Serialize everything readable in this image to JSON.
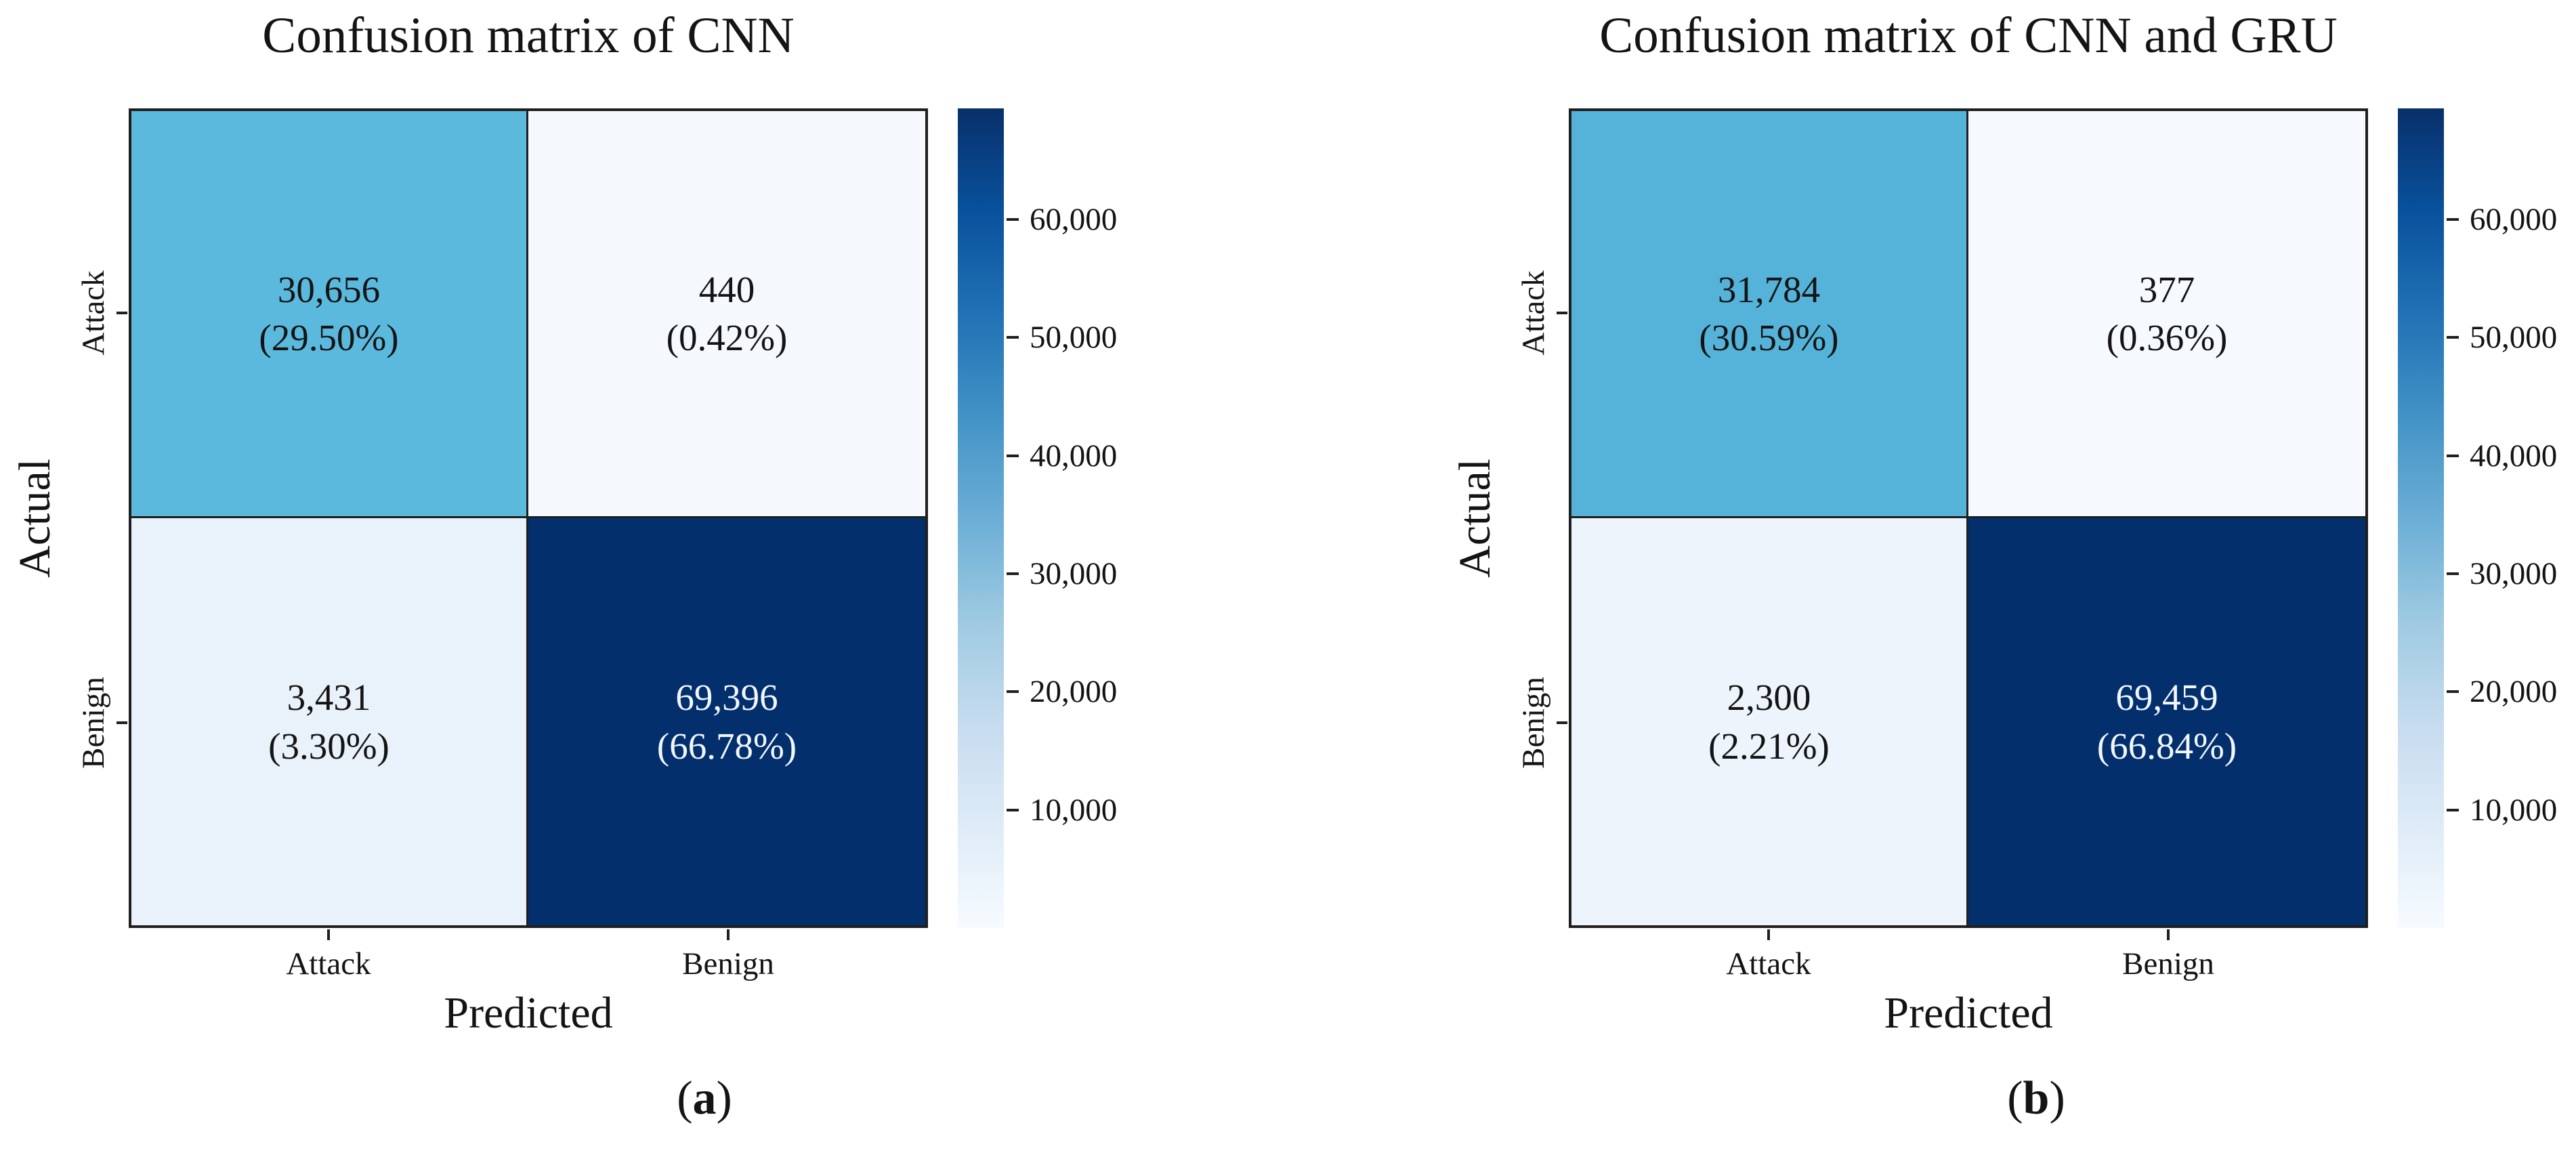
{
  "figure": {
    "panels": [
      {
        "title": "Confusion matrix of CNN",
        "y_axis_label": "Actual",
        "x_axis_label": "Predicted",
        "row_labels": [
          "Attack",
          "Benign"
        ],
        "col_labels": [
          "Attack",
          "Benign"
        ],
        "cells": [
          {
            "count": "30,656",
            "percent": "(29.50%)",
            "bg": "#5bb9de",
            "fg": "#141414"
          },
          {
            "count": "440",
            "percent": "(0.42%)",
            "bg": "#f5f9fe",
            "fg": "#141414"
          },
          {
            "count": "3,431",
            "percent": "(3.30%)",
            "bg": "#e9f1fa",
            "fg": "#141414"
          },
          {
            "count": "69,396",
            "percent": "(66.78%)",
            "bg": "#03306c",
            "fg": "#f2f6fd"
          }
        ],
        "colorbar_ticks": [
          "60,000",
          "50,000",
          "40,000",
          "30,000",
          "20,000",
          "10,000"
        ],
        "caption": {
          "open": "(",
          "letter": "a",
          "close": ")"
        }
      },
      {
        "title": "Confusion matrix of CNN and GRU",
        "y_axis_label": "Actual",
        "x_axis_label": "Predicted",
        "row_labels": [
          "Attack",
          "Benign"
        ],
        "col_labels": [
          "Attack",
          "Benign"
        ],
        "cells": [
          {
            "count": "31,784",
            "percent": "(30.59%)",
            "bg": "#55b3da",
            "fg": "#141414"
          },
          {
            "count": "377",
            "percent": "(0.36%)",
            "bg": "#f6fafe",
            "fg": "#141414"
          },
          {
            "count": "2,300",
            "percent": "(2.21%)",
            "bg": "#edf4fb",
            "fg": "#141414"
          },
          {
            "count": "69,459",
            "percent": "(66.84%)",
            "bg": "#03306c",
            "fg": "#f2f6fd"
          }
        ],
        "colorbar_ticks": [
          "60,000",
          "50,000",
          "40,000",
          "30,000",
          "20,000",
          "10,000"
        ],
        "caption": {
          "open": "(",
          "letter": "b",
          "close": ")"
        }
      }
    ]
  },
  "chart_data": [
    {
      "type": "heatmap",
      "title": "Confusion matrix of CNN",
      "xlabel": "Predicted",
      "ylabel": "Actual",
      "x_categories": [
        "Attack",
        "Benign"
      ],
      "y_categories": [
        "Attack",
        "Benign"
      ],
      "values": [
        [
          30656,
          440
        ],
        [
          3431,
          69396
        ]
      ],
      "percent": [
        [
          29.5,
          0.42
        ],
        [
          3.3,
          66.78
        ]
      ],
      "colormap": "Blues",
      "vmin": 0,
      "vmax": 69396,
      "colorbar_ticks": [
        10000,
        20000,
        30000,
        40000,
        50000,
        60000
      ],
      "legend_position": "right-colorbar",
      "grid": false,
      "caption": "(a)"
    },
    {
      "type": "heatmap",
      "title": "Confusion matrix of CNN and GRU",
      "xlabel": "Predicted",
      "ylabel": "Actual",
      "x_categories": [
        "Attack",
        "Benign"
      ],
      "y_categories": [
        "Attack",
        "Benign"
      ],
      "values": [
        [
          31784,
          377
        ],
        [
          2300,
          69459
        ]
      ],
      "percent": [
        [
          30.59,
          0.36
        ],
        [
          2.21,
          66.84
        ]
      ],
      "colormap": "Blues",
      "vmin": 0,
      "vmax": 69459,
      "colorbar_ticks": [
        10000,
        20000,
        30000,
        40000,
        50000,
        60000
      ],
      "legend_position": "right-colorbar",
      "grid": false,
      "caption": "(b)"
    }
  ]
}
